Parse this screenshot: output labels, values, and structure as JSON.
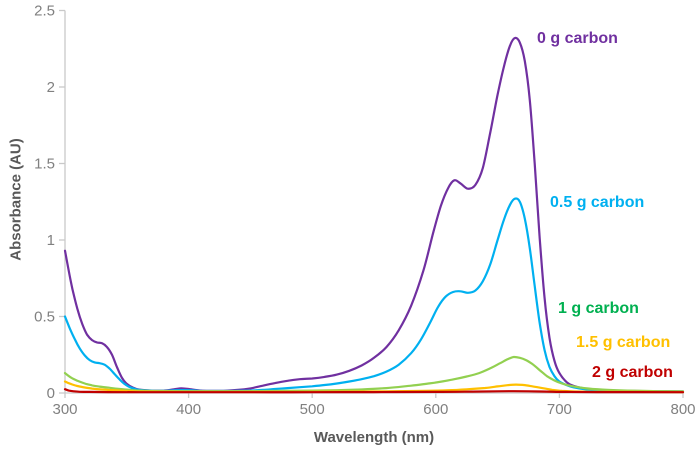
{
  "chart_data": {
    "type": "line",
    "title": "",
    "xlabel": "Wavelength (nm)",
    "ylabel": "Absorbance (AU)",
    "xlim": [
      300,
      800
    ],
    "ylim": [
      0,
      2.5
    ],
    "xticks": [
      300,
      400,
      500,
      600,
      700,
      800
    ],
    "yticks": [
      0,
      0.5,
      1,
      1.5,
      2,
      2.5
    ],
    "grid": false,
    "legend_position": "inline labels right of each curve",
    "axis_color": "#c9c9c9",
    "tick_label_color": "#808080",
    "axis_title_color": "#595959",
    "series": [
      {
        "name": "0 g carbon",
        "color": "#7030A0",
        "peak": {
          "wavelength": 665,
          "absorbance": 2.32
        },
        "shoulder": {
          "wavelength": 615,
          "absorbance": 1.39
        },
        "points": [
          [
            300,
            0.93
          ],
          [
            303,
            0.8
          ],
          [
            306,
            0.68
          ],
          [
            310,
            0.55
          ],
          [
            314,
            0.45
          ],
          [
            318,
            0.38
          ],
          [
            322,
            0.345
          ],
          [
            326,
            0.33
          ],
          [
            330,
            0.325
          ],
          [
            334,
            0.3
          ],
          [
            338,
            0.25
          ],
          [
            342,
            0.17
          ],
          [
            346,
            0.1
          ],
          [
            350,
            0.06
          ],
          [
            355,
            0.035
          ],
          [
            360,
            0.022
          ],
          [
            370,
            0.016
          ],
          [
            380,
            0.016
          ],
          [
            388,
            0.024
          ],
          [
            394,
            0.03
          ],
          [
            400,
            0.026
          ],
          [
            410,
            0.016
          ],
          [
            420,
            0.014
          ],
          [
            430,
            0.015
          ],
          [
            440,
            0.02
          ],
          [
            450,
            0.03
          ],
          [
            460,
            0.048
          ],
          [
            470,
            0.065
          ],
          [
            480,
            0.08
          ],
          [
            490,
            0.09
          ],
          [
            500,
            0.095
          ],
          [
            510,
            0.105
          ],
          [
            520,
            0.12
          ],
          [
            530,
            0.145
          ],
          [
            540,
            0.18
          ],
          [
            550,
            0.23
          ],
          [
            560,
            0.3
          ],
          [
            570,
            0.41
          ],
          [
            580,
            0.57
          ],
          [
            590,
            0.8
          ],
          [
            598,
            1.05
          ],
          [
            604,
            1.22
          ],
          [
            610,
            1.34
          ],
          [
            615,
            1.39
          ],
          [
            620,
            1.37
          ],
          [
            626,
            1.335
          ],
          [
            632,
            1.36
          ],
          [
            638,
            1.47
          ],
          [
            644,
            1.7
          ],
          [
            650,
            1.95
          ],
          [
            655,
            2.13
          ],
          [
            660,
            2.27
          ],
          [
            664,
            2.32
          ],
          [
            668,
            2.29
          ],
          [
            672,
            2.17
          ],
          [
            676,
            1.92
          ],
          [
            680,
            1.5
          ],
          [
            684,
            1.02
          ],
          [
            688,
            0.62
          ],
          [
            692,
            0.36
          ],
          [
            696,
            0.21
          ],
          [
            700,
            0.13
          ],
          [
            706,
            0.07
          ],
          [
            712,
            0.045
          ],
          [
            720,
            0.03
          ],
          [
            730,
            0.022
          ],
          [
            745,
            0.016
          ],
          [
            760,
            0.013
          ],
          [
            780,
            0.011
          ],
          [
            800,
            0.01
          ]
        ]
      },
      {
        "name": "0.5 g carbon",
        "color": "#00B0F0",
        "peak": {
          "wavelength": 665,
          "absorbance": 1.27
        },
        "shoulder": {
          "wavelength": 618,
          "absorbance": 0.66
        },
        "points": [
          [
            300,
            0.5
          ],
          [
            304,
            0.42
          ],
          [
            308,
            0.35
          ],
          [
            312,
            0.29
          ],
          [
            316,
            0.245
          ],
          [
            320,
            0.215
          ],
          [
            324,
            0.2
          ],
          [
            328,
            0.195
          ],
          [
            332,
            0.185
          ],
          [
            336,
            0.16
          ],
          [
            340,
            0.125
          ],
          [
            344,
            0.09
          ],
          [
            348,
            0.06
          ],
          [
            352,
            0.04
          ],
          [
            356,
            0.028
          ],
          [
            360,
            0.02
          ],
          [
            370,
            0.015
          ],
          [
            380,
            0.014
          ],
          [
            390,
            0.018
          ],
          [
            400,
            0.018
          ],
          [
            410,
            0.014
          ],
          [
            420,
            0.013
          ],
          [
            430,
            0.013
          ],
          [
            440,
            0.014
          ],
          [
            450,
            0.016
          ],
          [
            460,
            0.02
          ],
          [
            470,
            0.026
          ],
          [
            480,
            0.032
          ],
          [
            490,
            0.038
          ],
          [
            500,
            0.044
          ],
          [
            510,
            0.052
          ],
          [
            520,
            0.062
          ],
          [
            530,
            0.075
          ],
          [
            540,
            0.09
          ],
          [
            550,
            0.11
          ],
          [
            560,
            0.14
          ],
          [
            570,
            0.185
          ],
          [
            580,
            0.26
          ],
          [
            588,
            0.35
          ],
          [
            596,
            0.47
          ],
          [
            602,
            0.565
          ],
          [
            608,
            0.63
          ],
          [
            614,
            0.66
          ],
          [
            620,
            0.665
          ],
          [
            626,
            0.655
          ],
          [
            632,
            0.67
          ],
          [
            638,
            0.73
          ],
          [
            644,
            0.84
          ],
          [
            650,
            1.0
          ],
          [
            655,
            1.13
          ],
          [
            660,
            1.23
          ],
          [
            664,
            1.27
          ],
          [
            668,
            1.25
          ],
          [
            672,
            1.14
          ],
          [
            676,
            0.95
          ],
          [
            680,
            0.7
          ],
          [
            684,
            0.46
          ],
          [
            688,
            0.28
          ],
          [
            692,
            0.17
          ],
          [
            696,
            0.11
          ],
          [
            700,
            0.075
          ],
          [
            708,
            0.045
          ],
          [
            716,
            0.03
          ],
          [
            726,
            0.02
          ],
          [
            740,
            0.014
          ],
          [
            760,
            0.011
          ],
          [
            800,
            0.01
          ]
        ]
      },
      {
        "name": "1 g carbon",
        "color": "#92D050",
        "label_color": "#00B050",
        "peak": {
          "wavelength": 663,
          "absorbance": 0.24
        },
        "points": [
          [
            300,
            0.13
          ],
          [
            305,
            0.1
          ],
          [
            310,
            0.08
          ],
          [
            316,
            0.062
          ],
          [
            322,
            0.05
          ],
          [
            328,
            0.042
          ],
          [
            335,
            0.035
          ],
          [
            342,
            0.028
          ],
          [
            350,
            0.022
          ],
          [
            360,
            0.016
          ],
          [
            375,
            0.013
          ],
          [
            400,
            0.012
          ],
          [
            430,
            0.012
          ],
          [
            460,
            0.013
          ],
          [
            490,
            0.015
          ],
          [
            520,
            0.018
          ],
          [
            540,
            0.023
          ],
          [
            560,
            0.032
          ],
          [
            580,
            0.048
          ],
          [
            595,
            0.063
          ],
          [
            605,
            0.075
          ],
          [
            615,
            0.09
          ],
          [
            625,
            0.108
          ],
          [
            635,
            0.13
          ],
          [
            645,
            0.165
          ],
          [
            652,
            0.195
          ],
          [
            658,
            0.22
          ],
          [
            663,
            0.235
          ],
          [
            668,
            0.23
          ],
          [
            673,
            0.215
          ],
          [
            678,
            0.19
          ],
          [
            684,
            0.15
          ],
          [
            690,
            0.11
          ],
          [
            696,
            0.082
          ],
          [
            702,
            0.062
          ],
          [
            710,
            0.045
          ],
          [
            720,
            0.032
          ],
          [
            735,
            0.022
          ],
          [
            755,
            0.016
          ],
          [
            780,
            0.012
          ],
          [
            800,
            0.011
          ]
        ]
      },
      {
        "name": "1.5 g carbon",
        "color": "#FFC000",
        "peak": {
          "wavelength": 665,
          "absorbance": 0.055
        },
        "points": [
          [
            300,
            0.075
          ],
          [
            305,
            0.058
          ],
          [
            310,
            0.046
          ],
          [
            316,
            0.036
          ],
          [
            322,
            0.029
          ],
          [
            330,
            0.023
          ],
          [
            340,
            0.018
          ],
          [
            350,
            0.013
          ],
          [
            360,
            0.01
          ],
          [
            380,
            0.008
          ],
          [
            420,
            0.007
          ],
          [
            470,
            0.007
          ],
          [
            520,
            0.009
          ],
          [
            560,
            0.011
          ],
          [
            590,
            0.014
          ],
          [
            610,
            0.018
          ],
          [
            625,
            0.024
          ],
          [
            640,
            0.033
          ],
          [
            650,
            0.043
          ],
          [
            658,
            0.051
          ],
          [
            665,
            0.055
          ],
          [
            671,
            0.052
          ],
          [
            678,
            0.044
          ],
          [
            686,
            0.032
          ],
          [
            694,
            0.021
          ],
          [
            702,
            0.014
          ],
          [
            712,
            0.01
          ],
          [
            730,
            0.008
          ],
          [
            760,
            0.007
          ],
          [
            800,
            0.006
          ]
        ]
      },
      {
        "name": "2 g carbon",
        "color": "#C00000",
        "peak": {
          "wavelength": 663,
          "absorbance": 0.012
        },
        "points": [
          [
            300,
            0.025
          ],
          [
            303,
            0.016
          ],
          [
            307,
            0.011
          ],
          [
            312,
            0.008
          ],
          [
            320,
            0.007
          ],
          [
            335,
            0.006
          ],
          [
            360,
            0.005
          ],
          [
            400,
            0.005
          ],
          [
            450,
            0.005
          ],
          [
            500,
            0.005
          ],
          [
            550,
            0.006
          ],
          [
            600,
            0.007
          ],
          [
            630,
            0.009
          ],
          [
            650,
            0.011
          ],
          [
            663,
            0.012
          ],
          [
            675,
            0.011
          ],
          [
            690,
            0.009
          ],
          [
            705,
            0.007
          ],
          [
            730,
            0.006
          ],
          [
            800,
            0.005
          ]
        ]
      }
    ]
  }
}
